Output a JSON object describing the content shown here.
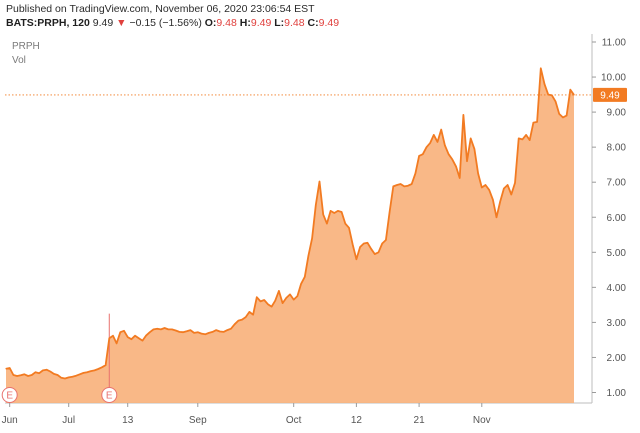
{
  "header": {
    "published": "Published on TradingView.com, November 06, 2020 23:06:54 EST",
    "ticker": "BATS:PRPH, 120",
    "last": "9.49",
    "change": "−0.15 (−1.56%)",
    "open_label": "O:",
    "open": "9.48",
    "high_label": "H:",
    "high": "9.49",
    "low_label": "L:",
    "low": "9.48",
    "close_label": "C:",
    "close": "9.49"
  },
  "legend": {
    "symbol": "PRPH",
    "volume": "Vol"
  },
  "colors": {
    "line": "#f27b22",
    "fill": "#f9b27d",
    "axis_text": "#555555",
    "price_tag": "#f27b22",
    "earnings": "#e8716d"
  },
  "chart_data": {
    "type": "area",
    "title": "PRPH",
    "xlabel": "",
    "ylabel": "",
    "ylim": [
      0.5,
      11.2
    ],
    "y_ticks": [
      "1.00",
      "2.00",
      "3.00",
      "4.00",
      "5.00",
      "6.00",
      "7.00",
      "8.00",
      "9.00",
      "10.00",
      "11.00"
    ],
    "x_ticks": [
      {
        "label": "Jun",
        "at": 1
      },
      {
        "label": "Jul",
        "at": 17
      },
      {
        "label": "13",
        "at": 33
      },
      {
        "label": "Sep",
        "at": 52
      },
      {
        "label": "Oct",
        "at": 78
      },
      {
        "label": "12",
        "at": 95
      },
      {
        "label": "21",
        "at": 112
      },
      {
        "label": "Nov",
        "at": 129
      }
    ],
    "last_price": "9.49",
    "last_value": 9.49,
    "earnings": [
      {
        "label": "E",
        "at": 1
      },
      {
        "label": "E",
        "at": 28
      }
    ],
    "series": [
      {
        "values": [
          1.68,
          1.7,
          1.5,
          1.47,
          1.49,
          1.52,
          1.47,
          1.5,
          1.58,
          1.55,
          1.63,
          1.65,
          1.6,
          1.53,
          1.5,
          1.42,
          1.4,
          1.43,
          1.45,
          1.48,
          1.52,
          1.56,
          1.58,
          1.61,
          1.63,
          1.67,
          1.72,
          1.78,
          2.55,
          2.62,
          2.4,
          2.72,
          2.76,
          2.58,
          2.52,
          2.62,
          2.55,
          2.48,
          2.63,
          2.72,
          2.8,
          2.82,
          2.8,
          2.84,
          2.8,
          2.8,
          2.77,
          2.73,
          2.72,
          2.75,
          2.78,
          2.7,
          2.72,
          2.68,
          2.66,
          2.7,
          2.73,
          2.78,
          2.74,
          2.73,
          2.78,
          2.82,
          2.95,
          3.05,
          3.08,
          3.15,
          3.3,
          3.22,
          3.72,
          3.6,
          3.64,
          3.52,
          3.45,
          3.62,
          3.9,
          3.55,
          3.7,
          3.8,
          3.65,
          3.75,
          4.1,
          4.3,
          4.9,
          5.4,
          6.35,
          7.02,
          6.08,
          5.82,
          6.18,
          6.12,
          6.18,
          6.15,
          5.82,
          5.7,
          5.22,
          4.8,
          5.15,
          5.25,
          5.27,
          5.1,
          4.95,
          5.0,
          5.25,
          5.35,
          6.15,
          6.88,
          6.92,
          6.95,
          6.88,
          6.9,
          6.95,
          7.25,
          7.75,
          7.8,
          8.0,
          8.12,
          8.35,
          8.15,
          8.5,
          8.05,
          7.8,
          7.65,
          7.45,
          7.12,
          8.92,
          7.6,
          8.25,
          7.95,
          7.25,
          6.85,
          6.92,
          6.78,
          6.5,
          6.0,
          6.45,
          6.82,
          6.92,
          6.65,
          6.98,
          8.25,
          8.22,
          8.35,
          8.2,
          8.7,
          8.72,
          10.25,
          9.8,
          9.5,
          9.48,
          9.3,
          8.95,
          8.85,
          8.9,
          9.64,
          9.49
        ]
      }
    ]
  }
}
